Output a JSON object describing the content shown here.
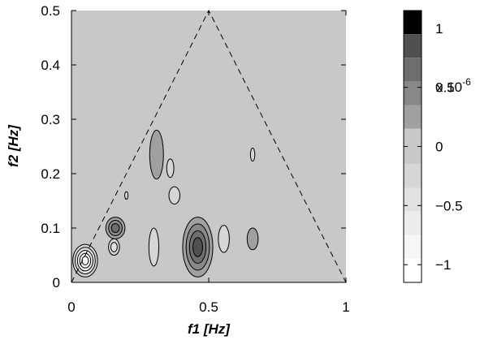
{
  "chart_data": {
    "type": "heatmap",
    "xlabel": "f1 [Hz]",
    "ylabel": "f2 [Hz]",
    "xlim": [
      0,
      1
    ],
    "ylim": [
      0,
      0.5
    ],
    "x_ticks": [
      {
        "value": 0,
        "label": "0"
      },
      {
        "value": 0.5,
        "label": "0.5"
      },
      {
        "value": 1,
        "label": "1"
      }
    ],
    "y_ticks": [
      {
        "value": 0,
        "label": "0"
      },
      {
        "value": 0.1,
        "label": "0.1"
      },
      {
        "value": 0.2,
        "label": "0.2"
      },
      {
        "value": 0.3,
        "label": "0.3"
      },
      {
        "value": 0.4,
        "label": "0.4"
      },
      {
        "value": 0.5,
        "label": "0.5"
      }
    ],
    "background_color": "#c8c8c8",
    "contour_outline_color": "#000000",
    "triangle_outline": [
      [
        0,
        0
      ],
      [
        0.5,
        0.5
      ],
      [
        1,
        0
      ],
      [
        0,
        0
      ]
    ],
    "blobs": [
      {
        "name": "peak-main",
        "cx": 0.46,
        "cy": 0.065,
        "rx": 0.055,
        "ry": 0.055,
        "levels": [
          0.15,
          0.35,
          0.6,
          0.85
        ]
      },
      {
        "name": "peak-upper",
        "cx": 0.31,
        "cy": 0.235,
        "rx": 0.025,
        "ry": 0.045,
        "levels": [
          0.15
        ]
      },
      {
        "name": "peak-left",
        "cx": 0.16,
        "cy": 0.1,
        "rx": 0.035,
        "ry": 0.02,
        "levels": [
          0.15,
          0.4,
          0.7
        ]
      },
      {
        "name": "peak-small-right",
        "cx": 0.66,
        "cy": 0.08,
        "rx": 0.02,
        "ry": 0.02,
        "levels": [
          0.15
        ]
      },
      {
        "name": "trough-origin",
        "cx": 0.05,
        "cy": 0.04,
        "rx": 0.045,
        "ry": 0.03,
        "levels": [
          -0.15,
          -0.35,
          -0.55,
          -0.75,
          -0.95
        ]
      },
      {
        "name": "trough-left",
        "cx": 0.155,
        "cy": 0.065,
        "rx": 0.02,
        "ry": 0.015,
        "levels": [
          -0.15,
          -0.4
        ]
      },
      {
        "name": "trough-mid",
        "cx": 0.3,
        "cy": 0.065,
        "rx": 0.018,
        "ry": 0.035,
        "levels": [
          -0.15
        ]
      },
      {
        "name": "trough-upper",
        "cx": 0.36,
        "cy": 0.21,
        "rx": 0.013,
        "ry": 0.017,
        "levels": [
          -0.15
        ]
      },
      {
        "name": "trough-small",
        "cx": 0.375,
        "cy": 0.16,
        "rx": 0.02,
        "ry": 0.016,
        "levels": [
          -0.15
        ]
      },
      {
        "name": "trough-dot-upper",
        "cx": 0.2,
        "cy": 0.16,
        "rx": 0.006,
        "ry": 0.007,
        "levels": [
          -0.15
        ]
      },
      {
        "name": "trough-right",
        "cx": 0.555,
        "cy": 0.08,
        "rx": 0.02,
        "ry": 0.025,
        "levels": [
          -0.15
        ]
      },
      {
        "name": "trough-right-dot",
        "cx": 0.66,
        "cy": 0.235,
        "rx": 0.008,
        "ry": 0.012,
        "levels": [
          -0.15
        ]
      }
    ],
    "colorbar": {
      "multiplier_label": "x 10",
      "multiplier_exponent": "-6",
      "range": [
        -1.15,
        1.15
      ],
      "levels": [
        {
          "from": 0.95,
          "to": 1.15,
          "color": "#000000"
        },
        {
          "from": 0.75,
          "to": 0.95,
          "color": "#505050"
        },
        {
          "from": 0.55,
          "to": 0.75,
          "color": "#6e6e6e"
        },
        {
          "from": 0.35,
          "to": 0.55,
          "color": "#888888"
        },
        {
          "from": 0.15,
          "to": 0.35,
          "color": "#a0a0a0"
        },
        {
          "from": -0.15,
          "to": 0.15,
          "color": "#c8c8c8"
        },
        {
          "from": -0.35,
          "to": -0.15,
          "color": "#d6d6d6"
        },
        {
          "from": -0.55,
          "to": -0.35,
          "color": "#e2e2e2"
        },
        {
          "from": -0.75,
          "to": -0.55,
          "color": "#ececec"
        },
        {
          "from": -0.95,
          "to": -0.75,
          "color": "#f6f6f6"
        },
        {
          "from": -1.15,
          "to": -0.95,
          "color": "#ffffff"
        }
      ],
      "ticks": [
        {
          "value": 1,
          "label": "1"
        },
        {
          "value": 0.5,
          "label": "0.5"
        },
        {
          "value": 0,
          "label": "0"
        },
        {
          "value": -0.5,
          "label": "−0.5"
        },
        {
          "value": -1,
          "label": "−1"
        }
      ]
    }
  }
}
